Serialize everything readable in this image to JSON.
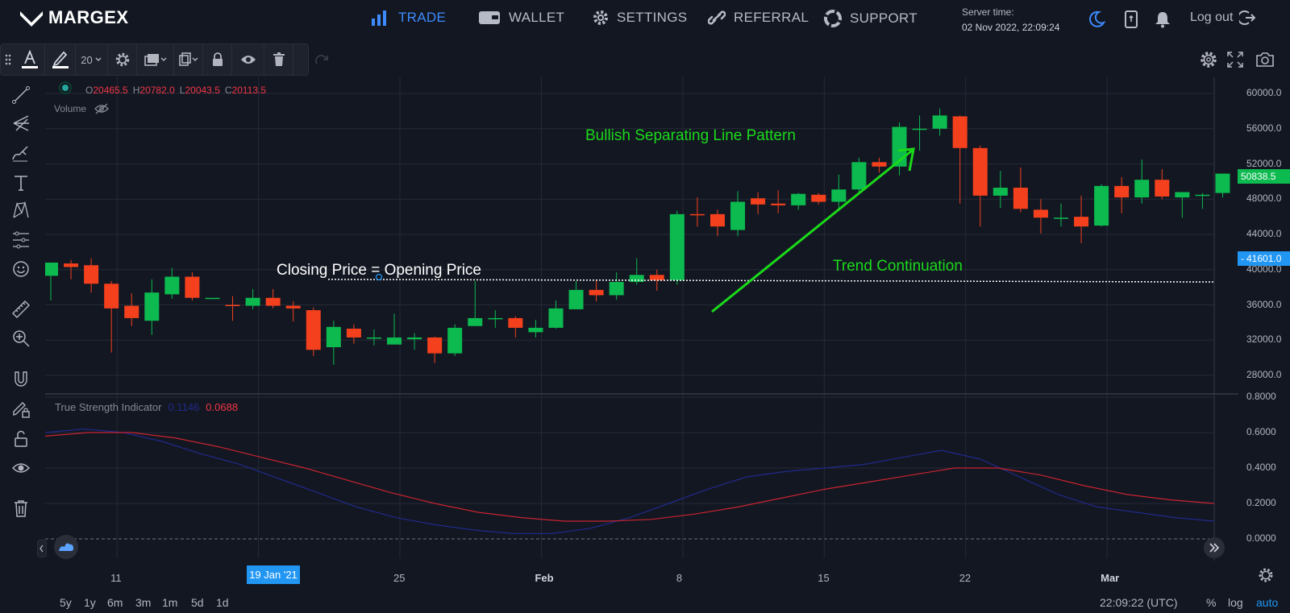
{
  "brand": {
    "name": "MARGEX"
  },
  "nav": {
    "trade": "TRADE",
    "wallet": "WALLET",
    "settings": "SETTINGS",
    "referral": "REFERRAL",
    "support": "SUPPORT"
  },
  "server": {
    "label": "Server time:",
    "value": "02 Nov 2022, 22:09:24"
  },
  "logout": "Log out",
  "drawing_toolbar": {
    "font_size": "20"
  },
  "ohlc": {
    "o_label": "O",
    "o": "20465.5",
    "h_label": "H",
    "h": "20782.0",
    "l_label": "L",
    "l": "20043.5",
    "c_label": "C",
    "c": "20113.5"
  },
  "volume_label": "Volume",
  "indicator": {
    "name": "True Strength Indicator",
    "value1": "0.1146",
    "value2": "0.0688"
  },
  "annotations": {
    "pattern": "Bullish Separating Line Pattern",
    "closing": "Closing Price = Opening Price",
    "trend": "Trend Continuation"
  },
  "price_axis": [
    "60000.0",
    "56000.0",
    "52000.0",
    "48000.0",
    "44000.0",
    "40000.0",
    "36000.0",
    "32000.0",
    "28000.0"
  ],
  "price_tags": {
    "last": "50838.5",
    "line": "41601.0"
  },
  "indicator_axis": [
    "0.8000",
    "0.6000",
    "0.4000",
    "0.2000",
    "0.0000"
  ],
  "time_axis": [
    "11",
    "25",
    "Feb",
    "8",
    "15",
    "22",
    "Mar"
  ],
  "crosshair_date": "19 Jan '21",
  "ranges": [
    "5y",
    "1y",
    "6m",
    "3m",
    "1m",
    "5d",
    "1d"
  ],
  "footer": {
    "clock": "22:09:22 (UTC)",
    "percent": "%",
    "log": "log",
    "auto": "auto"
  },
  "colors": {
    "up": "#0cba4f",
    "down": "#f4401d",
    "accent": "#3d8bfd",
    "annotation_green": "#1bd91b"
  },
  "chart_data": {
    "type": "candlestick",
    "candles": [
      {
        "o": 39300,
        "h": 40700,
        "l": 36500,
        "c": 40800
      },
      {
        "o": 40700,
        "h": 41100,
        "l": 38900,
        "c": 40300
      },
      {
        "o": 40500,
        "h": 41300,
        "l": 37400,
        "c": 38400
      },
      {
        "o": 38400,
        "h": 38700,
        "l": 30600,
        "c": 35600
      },
      {
        "o": 35900,
        "h": 37300,
        "l": 33600,
        "c": 34500
      },
      {
        "o": 34200,
        "h": 38900,
        "l": 32600,
        "c": 37400
      },
      {
        "o": 37200,
        "h": 40200,
        "l": 36700,
        "c": 39200
      },
      {
        "o": 39200,
        "h": 39700,
        "l": 36500,
        "c": 36800
      },
      {
        "o": 36800,
        "h": 36800,
        "l": 36800,
        "c": 36800
      },
      {
        "o": 36000,
        "h": 37000,
        "l": 34200,
        "c": 35900
      },
      {
        "o": 35900,
        "h": 37800,
        "l": 35500,
        "c": 36800
      },
      {
        "o": 36800,
        "h": 37800,
        "l": 35600,
        "c": 35900
      },
      {
        "o": 35900,
        "h": 36400,
        "l": 34100,
        "c": 35600
      },
      {
        "o": 35400,
        "h": 35700,
        "l": 30200,
        "c": 30900
      },
      {
        "o": 31200,
        "h": 34200,
        "l": 29200,
        "c": 33500
      },
      {
        "o": 33300,
        "h": 33800,
        "l": 31600,
        "c": 32300
      },
      {
        "o": 32200,
        "h": 33200,
        "l": 31400,
        "c": 32300
      },
      {
        "o": 31500,
        "h": 35000,
        "l": 31500,
        "c": 32300
      },
      {
        "o": 32100,
        "h": 32800,
        "l": 30900,
        "c": 32300
      },
      {
        "o": 32300,
        "h": 32400,
        "l": 29400,
        "c": 30500
      },
      {
        "o": 30500,
        "h": 33800,
        "l": 30200,
        "c": 33400
      },
      {
        "o": 33600,
        "h": 38700,
        "l": 33600,
        "c": 34500
      },
      {
        "o": 34500,
        "h": 35400,
        "l": 33400,
        "c": 34500
      },
      {
        "o": 34500,
        "h": 34700,
        "l": 32300,
        "c": 33400
      },
      {
        "o": 32900,
        "h": 34300,
        "l": 32300,
        "c": 33400
      },
      {
        "o": 33400,
        "h": 36500,
        "l": 33300,
        "c": 35600
      },
      {
        "o": 35500,
        "h": 38700,
        "l": 35500,
        "c": 37700
      },
      {
        "o": 37700,
        "h": 38900,
        "l": 36400,
        "c": 37100
      },
      {
        "o": 37100,
        "h": 39700,
        "l": 36600,
        "c": 38600
      },
      {
        "o": 38600,
        "h": 41300,
        "l": 38300,
        "c": 39400
      },
      {
        "o": 39400,
        "h": 40000,
        "l": 37600,
        "c": 38800
      },
      {
        "o": 38800,
        "h": 46700,
        "l": 38300,
        "c": 46300
      },
      {
        "o": 46300,
        "h": 48200,
        "l": 44900,
        "c": 46200
      },
      {
        "o": 46300,
        "h": 46800,
        "l": 43800,
        "c": 44900
      },
      {
        "o": 44500,
        "h": 48900,
        "l": 43800,
        "c": 47700
      },
      {
        "o": 48100,
        "h": 48800,
        "l": 46300,
        "c": 47400
      },
      {
        "o": 47500,
        "h": 49000,
        "l": 46400,
        "c": 47300
      },
      {
        "o": 47300,
        "h": 48700,
        "l": 46800,
        "c": 48600
      },
      {
        "o": 48500,
        "h": 48700,
        "l": 47400,
        "c": 47700
      },
      {
        "o": 47700,
        "h": 50800,
        "l": 46800,
        "c": 49100
      },
      {
        "o": 49100,
        "h": 52700,
        "l": 48600,
        "c": 52200
      },
      {
        "o": 52200,
        "h": 52700,
        "l": 51000,
        "c": 51700
      },
      {
        "o": 51700,
        "h": 56700,
        "l": 50700,
        "c": 56200
      },
      {
        "o": 56000,
        "h": 57500,
        "l": 53500,
        "c": 56000
      },
      {
        "o": 56000,
        "h": 58300,
        "l": 55200,
        "c": 57500
      },
      {
        "o": 57400,
        "h": 57500,
        "l": 47500,
        "c": 53800
      },
      {
        "o": 53800,
        "h": 54100,
        "l": 44900,
        "c": 48400
      },
      {
        "o": 48400,
        "h": 51200,
        "l": 47000,
        "c": 49300
      },
      {
        "o": 49300,
        "h": 51600,
        "l": 46500,
        "c": 46900
      },
      {
        "o": 46800,
        "h": 48000,
        "l": 44100,
        "c": 45900
      },
      {
        "o": 45900,
        "h": 47500,
        "l": 44900,
        "c": 45900
      },
      {
        "o": 46000,
        "h": 48400,
        "l": 43000,
        "c": 44900
      },
      {
        "o": 45000,
        "h": 49700,
        "l": 44900,
        "c": 49500
      },
      {
        "o": 49500,
        "h": 50500,
        "l": 46400,
        "c": 48200
      },
      {
        "o": 48200,
        "h": 52500,
        "l": 47500,
        "c": 50200
      },
      {
        "o": 50200,
        "h": 51400,
        "l": 48000,
        "c": 48300
      },
      {
        "o": 48200,
        "h": 48600,
        "l": 45900,
        "c": 48800
      },
      {
        "o": 48500,
        "h": 48700,
        "l": 46900,
        "c": 48500
      },
      {
        "o": 48700,
        "h": 50900,
        "l": 48200,
        "c": 50900
      }
    ],
    "tsi": {
      "series": [
        {
          "values": [
            0.6,
            0.62,
            0.6,
            0.55,
            0.48,
            0.42,
            0.34,
            0.26,
            0.18,
            0.12,
            0.08,
            0.05,
            0.03,
            0.03,
            0.06,
            0.12,
            0.2,
            0.28,
            0.35,
            0.38,
            0.4,
            0.42,
            0.46,
            0.5,
            0.45,
            0.35,
            0.25,
            0.18,
            0.15,
            0.12,
            0.1
          ]
        },
        {
          "values": [
            0.58,
            0.6,
            0.6,
            0.57,
            0.52,
            0.46,
            0.4,
            0.33,
            0.26,
            0.2,
            0.15,
            0.12,
            0.1,
            0.1,
            0.11,
            0.14,
            0.18,
            0.23,
            0.28,
            0.32,
            0.36,
            0.4,
            0.4,
            0.36,
            0.3,
            0.25,
            0.22,
            0.2
          ]
        }
      ]
    }
  }
}
